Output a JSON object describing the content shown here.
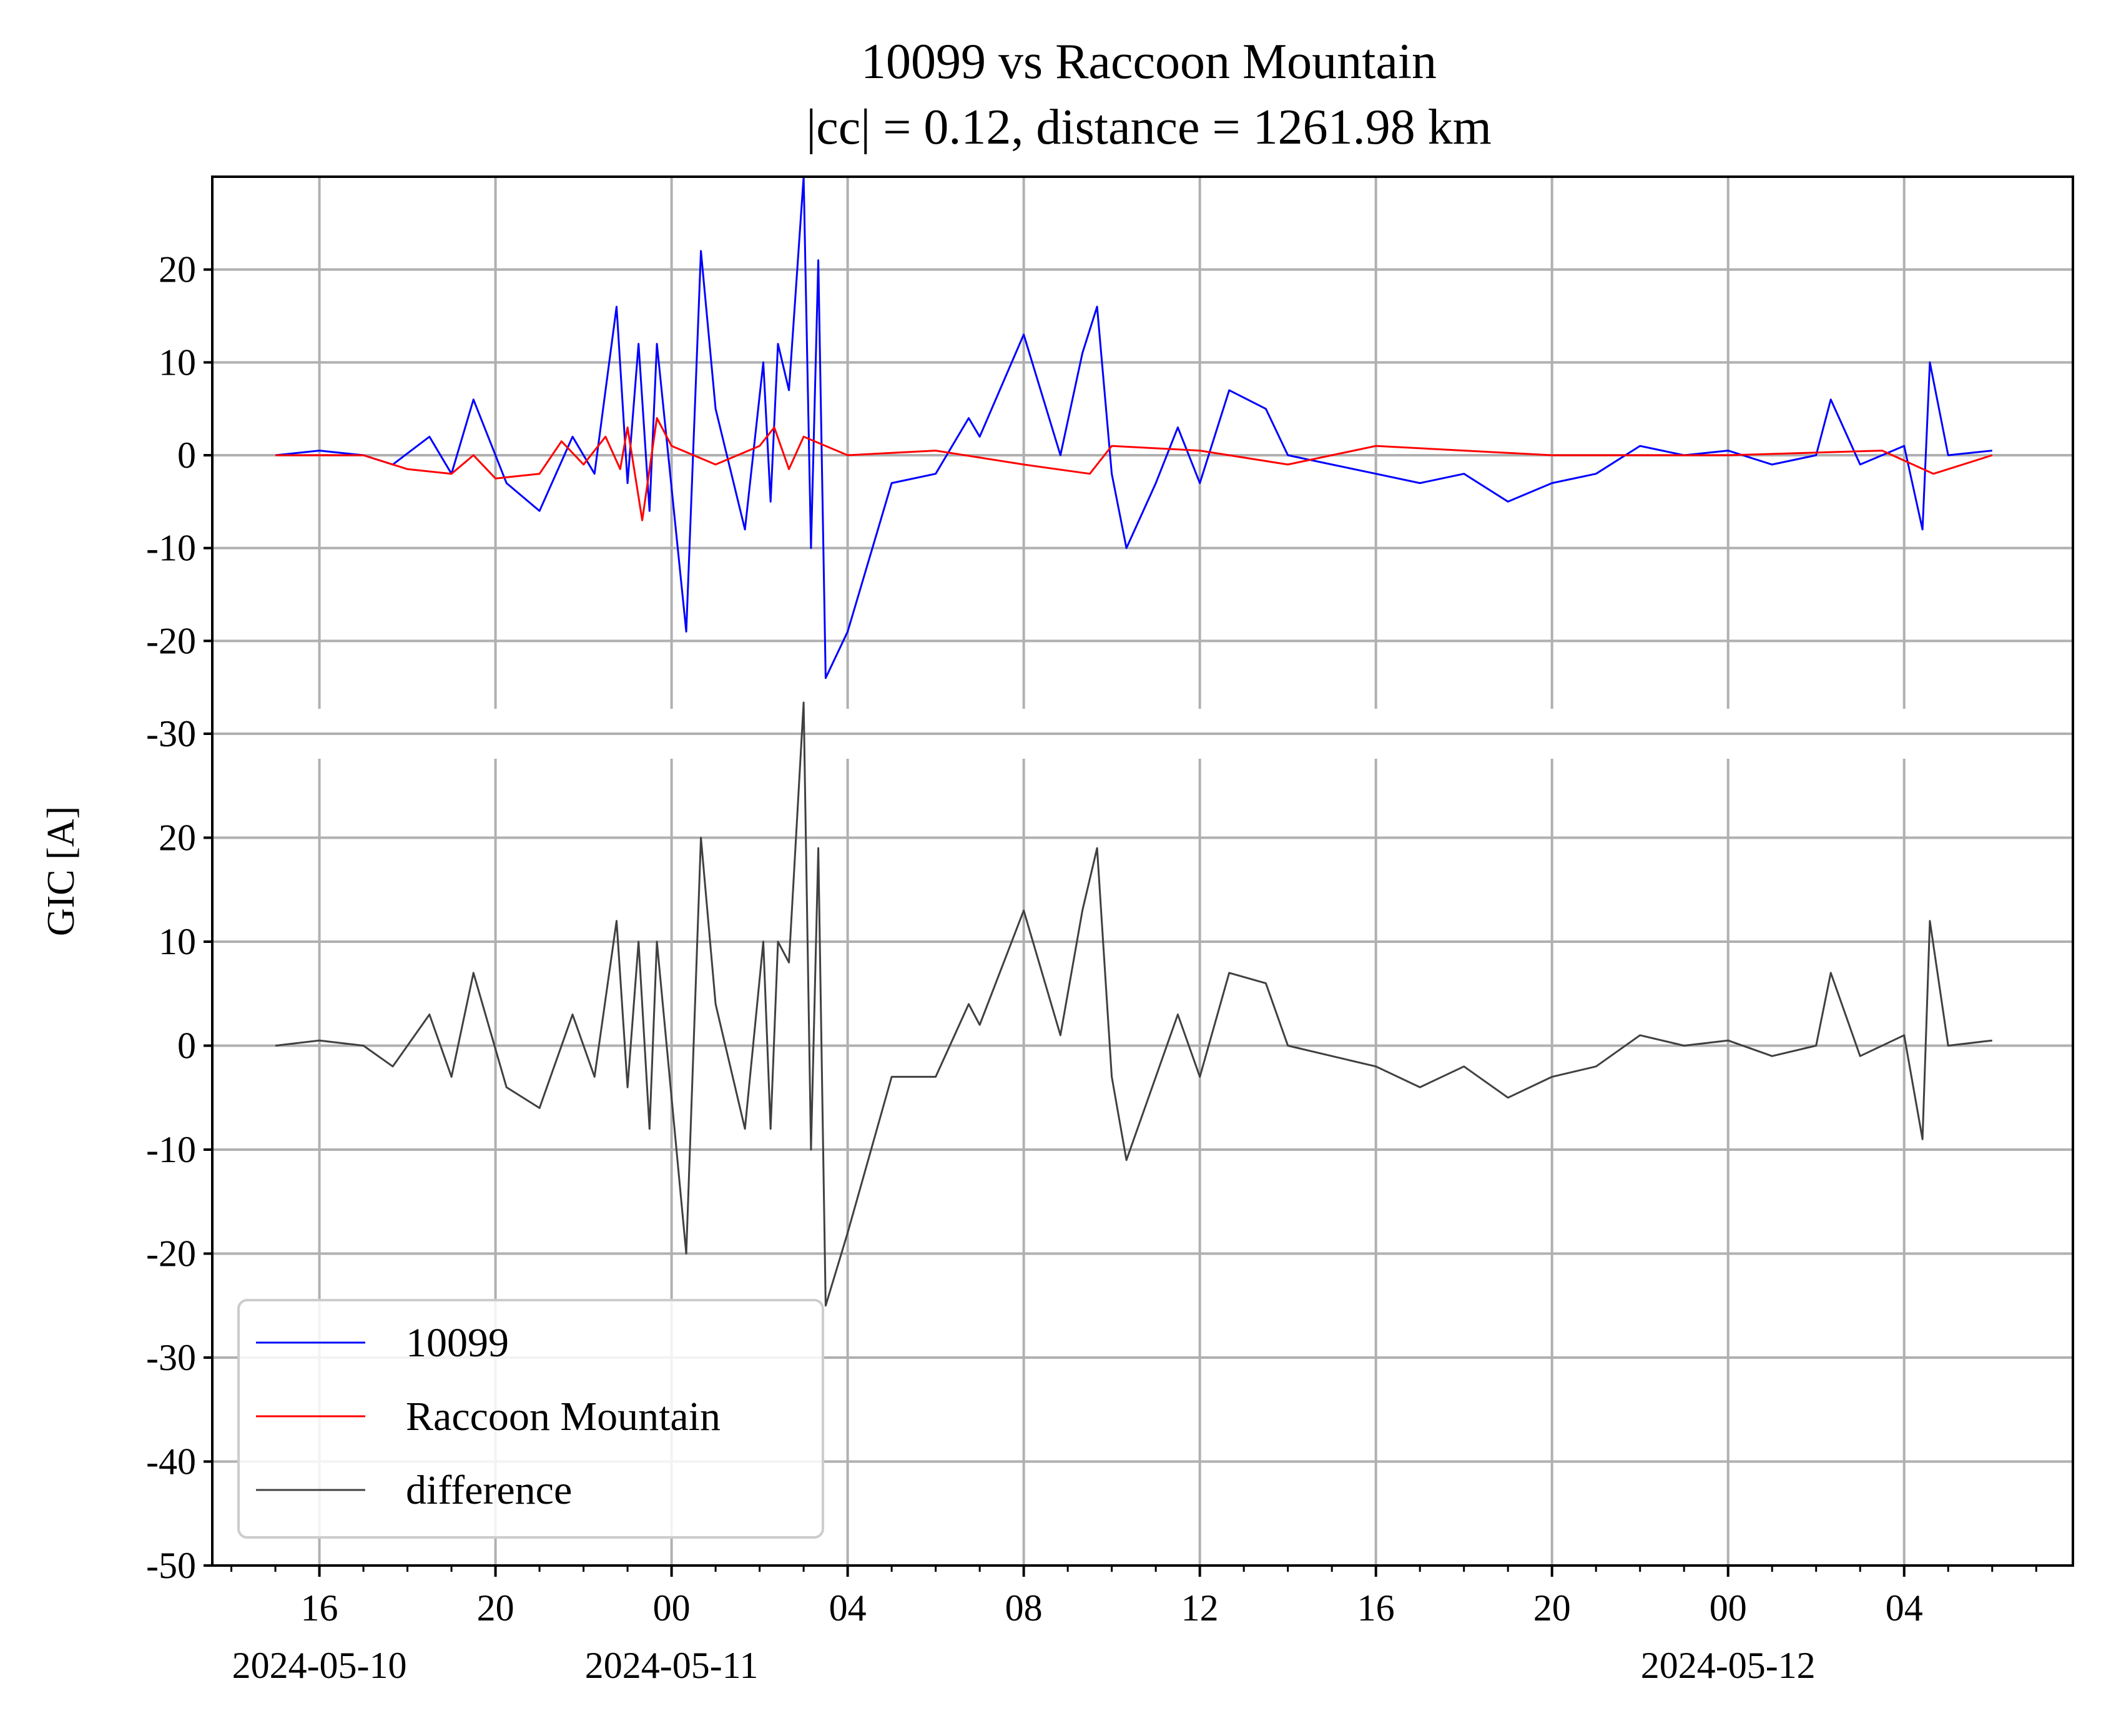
{
  "chart_data": {
    "type": "line",
    "title": "10099 vs Raccoon Mountain",
    "subtitle": "|cc| = 0.12, distance = 1261.98 km",
    "ylabel": "GIC [A]",
    "xlabel": "",
    "grid": true,
    "legend_position": "lower-left",
    "xlim": [
      "2024-05-10 13:34",
      "2024-05-12 07:50"
    ],
    "x_ticks": [
      {
        "time": "2024-05-10 16:00",
        "label": "16",
        "date_label": "2024-05-10"
      },
      {
        "time": "2024-05-10 20:00",
        "label": "20",
        "date_label": ""
      },
      {
        "time": "2024-05-11 00:00",
        "label": "00",
        "date_label": "2024-05-11"
      },
      {
        "time": "2024-05-11 04:00",
        "label": "04",
        "date_label": ""
      },
      {
        "time": "2024-05-11 08:00",
        "label": "08",
        "date_label": ""
      },
      {
        "time": "2024-05-11 12:00",
        "label": "12",
        "date_label": ""
      },
      {
        "time": "2024-05-11 16:00",
        "label": "16",
        "date_label": ""
      },
      {
        "time": "2024-05-11 20:00",
        "label": "20",
        "date_label": ""
      },
      {
        "time": "2024-05-12 00:00",
        "label": "00",
        "date_label": "2024-05-12"
      },
      {
        "time": "2024-05-12 04:00",
        "label": "04",
        "date_label": ""
      }
    ],
    "panels": [
      {
        "ylim": [
          -30,
          30
        ],
        "y_ticks": [
          "20",
          "10",
          "0",
          "-10",
          "-20",
          "-30"
        ],
        "series": [
          {
            "name": "10099",
            "color": "#0000ff",
            "x": [
              "2024-05-10 15:00",
              "2024-05-10 16:00",
              "2024-05-10 17:00",
              "2024-05-10 17:40",
              "2024-05-10 18:30",
              "2024-05-10 19:00",
              "2024-05-10 19:30",
              "2024-05-10 20:15",
              "2024-05-10 21:00",
              "2024-05-10 21:45",
              "2024-05-10 22:15",
              "2024-05-10 22:45",
              "2024-05-10 23:00",
              "2024-05-10 23:15",
              "2024-05-10 23:30",
              "2024-05-10 23:40",
              "2024-05-11 00:20",
              "2024-05-11 00:40",
              "2024-05-11 01:00",
              "2024-05-11 01:40",
              "2024-05-11 02:05",
              "2024-05-11 02:15",
              "2024-05-11 02:25",
              "2024-05-11 02:40",
              "2024-05-11 03:00",
              "2024-05-11 03:10",
              "2024-05-11 03:20",
              "2024-05-11 03:30",
              "2024-05-11 04:00",
              "2024-05-11 05:00",
              "2024-05-11 06:00",
              "2024-05-11 06:45",
              "2024-05-11 07:00",
              "2024-05-11 08:00",
              "2024-05-11 08:50",
              "2024-05-11 09:20",
              "2024-05-11 09:40",
              "2024-05-11 10:00",
              "2024-05-11 10:20",
              "2024-05-11 11:00",
              "2024-05-11 11:30",
              "2024-05-11 12:00",
              "2024-05-11 12:40",
              "2024-05-11 13:30",
              "2024-05-11 14:00",
              "2024-05-11 15:00",
              "2024-05-11 16:00",
              "2024-05-11 17:00",
              "2024-05-11 18:00",
              "2024-05-11 19:00",
              "2024-05-11 20:00",
              "2024-05-11 21:00",
              "2024-05-11 22:00",
              "2024-05-11 23:00",
              "2024-05-12 00:00",
              "2024-05-12 01:00",
              "2024-05-12 02:00",
              "2024-05-12 02:20",
              "2024-05-12 03:00",
              "2024-05-12 04:00",
              "2024-05-12 04:25",
              "2024-05-12 04:35",
              "2024-05-12 05:00",
              "2024-05-12 06:00"
            ],
            "values": [
              0,
              0.5,
              0,
              -1,
              2,
              -2,
              6,
              -3,
              -6,
              2,
              -2,
              16,
              -3,
              12,
              -6,
              12,
              -19,
              22,
              5,
              -8,
              10,
              -5,
              12,
              7,
              30,
              -10,
              21,
              -24,
              -19,
              -3,
              -2,
              4,
              2,
              13,
              0,
              11,
              16,
              -2,
              -10,
              -3,
              3,
              -3,
              7,
              5,
              0,
              -1,
              -2,
              -3,
              -2,
              -5,
              -3,
              -2,
              1,
              0,
              0.5,
              -1,
              0,
              6,
              -1,
              1,
              -8,
              10,
              0,
              0.5
            ]
          },
          {
            "name": "Raccoon Mountain",
            "color": "#ff0000",
            "x": [
              "2024-05-10 15:00",
              "2024-05-10 17:00",
              "2024-05-10 18:00",
              "2024-05-10 19:00",
              "2024-05-10 19:30",
              "2024-05-10 20:00",
              "2024-05-10 21:00",
              "2024-05-10 21:30",
              "2024-05-10 22:00",
              "2024-05-10 22:30",
              "2024-05-10 22:50",
              "2024-05-10 23:00",
              "2024-05-10 23:20",
              "2024-05-10 23:40",
              "2024-05-11 00:00",
              "2024-05-11 01:00",
              "2024-05-11 02:00",
              "2024-05-11 02:20",
              "2024-05-11 02:40",
              "2024-05-11 03:00",
              "2024-05-11 04:00",
              "2024-05-11 06:00",
              "2024-05-11 08:00",
              "2024-05-11 09:30",
              "2024-05-11 10:00",
              "2024-05-11 12:00",
              "2024-05-11 14:00",
              "2024-05-11 16:00",
              "2024-05-11 20:00",
              "2024-05-12 00:00",
              "2024-05-12 03:30",
              "2024-05-12 04:40",
              "2024-05-12 06:00"
            ],
            "values": [
              0,
              0,
              -1.5,
              -2,
              0,
              -2.5,
              -2,
              1.5,
              -1,
              2,
              -1.5,
              3,
              -7,
              4,
              1,
              -1,
              1,
              3,
              -1.5,
              2,
              0,
              0.5,
              -1,
              -2,
              1,
              0.5,
              -1,
              1,
              0,
              0,
              0.5,
              -2,
              0
            ]
          }
        ]
      },
      {
        "ylim": [
          -50,
          30
        ],
        "y_ticks": [
          "30",
          "20",
          "10",
          "0",
          "-10",
          "-20",
          "-30",
          "-40",
          "-50"
        ],
        "series": [
          {
            "name": "difference",
            "color": "#404040",
            "x": [
              "2024-05-10 15:00",
              "2024-05-10 16:00",
              "2024-05-10 17:00",
              "2024-05-10 17:40",
              "2024-05-10 18:30",
              "2024-05-10 19:00",
              "2024-05-10 19:30",
              "2024-05-10 20:15",
              "2024-05-10 21:00",
              "2024-05-10 21:45",
              "2024-05-10 22:15",
              "2024-05-10 22:45",
              "2024-05-10 23:00",
              "2024-05-10 23:15",
              "2024-05-10 23:30",
              "2024-05-10 23:40",
              "2024-05-11 00:20",
              "2024-05-11 00:40",
              "2024-05-11 01:00",
              "2024-05-11 01:40",
              "2024-05-11 02:05",
              "2024-05-11 02:15",
              "2024-05-11 02:25",
              "2024-05-11 02:40",
              "2024-05-11 03:00",
              "2024-05-11 03:10",
              "2024-05-11 03:20",
              "2024-05-11 03:30",
              "2024-05-11 04:00",
              "2024-05-11 05:00",
              "2024-05-11 06:00",
              "2024-05-11 06:45",
              "2024-05-11 07:00",
              "2024-05-11 08:00",
              "2024-05-11 08:50",
              "2024-05-11 09:20",
              "2024-05-11 09:40",
              "2024-05-11 10:00",
              "2024-05-11 10:20",
              "2024-05-11 11:00",
              "2024-05-11 11:30",
              "2024-05-11 12:00",
              "2024-05-11 12:40",
              "2024-05-11 13:30",
              "2024-05-11 14:00",
              "2024-05-11 15:00",
              "2024-05-11 16:00",
              "2024-05-11 17:00",
              "2024-05-11 18:00",
              "2024-05-11 19:00",
              "2024-05-11 20:00",
              "2024-05-11 21:00",
              "2024-05-11 22:00",
              "2024-05-11 23:00",
              "2024-05-12 00:00",
              "2024-05-12 01:00",
              "2024-05-12 02:00",
              "2024-05-12 02:20",
              "2024-05-12 03:00",
              "2024-05-12 04:00",
              "2024-05-12 04:25",
              "2024-05-12 04:35",
              "2024-05-12 05:00",
              "2024-05-12 06:00"
            ],
            "values": [
              0,
              0.5,
              0,
              -2,
              3,
              -3,
              7,
              -4,
              -6,
              3,
              -3,
              12,
              -4,
              10,
              -8,
              10,
              -20,
              20,
              4,
              -8,
              10,
              -8,
              10,
              8,
              33,
              -10,
              19,
              -25,
              -18,
              -3,
              -3,
              4,
              2,
              13,
              1,
              13,
              19,
              -3,
              -11,
              -3,
              3,
              -3,
              7,
              6,
              0,
              -1,
              -2,
              -4,
              -2,
              -5,
              -3,
              -2,
              1,
              0,
              0.5,
              -1,
              0,
              7,
              -1,
              1,
              -9,
              12,
              0,
              0.5
            ]
          }
        ]
      }
    ]
  }
}
